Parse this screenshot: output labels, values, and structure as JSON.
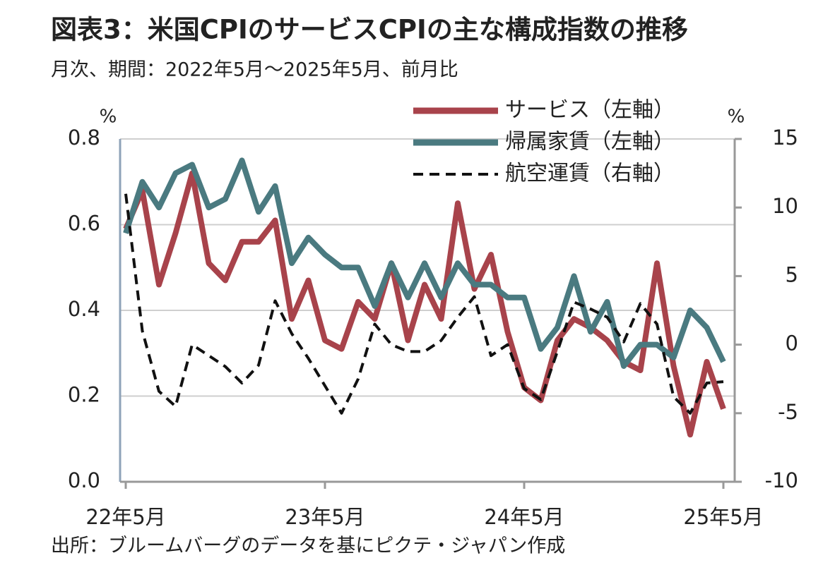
{
  "chart_data": {
    "type": "line",
    "title": "図表3：米国CPIのサービスCPIの主な構成指数の推移",
    "subtitle": "月次、期間：2022年5月～2025年5月、前月比",
    "source": "出所：ブルームバーグのデータを基にピクテ・ジャパン作成",
    "y_unit": "%",
    "y2_unit": "%",
    "categories": [
      "22年5月",
      null,
      null,
      null,
      null,
      null,
      null,
      null,
      null,
      null,
      null,
      null,
      "23年5月",
      null,
      null,
      null,
      null,
      null,
      null,
      null,
      null,
      null,
      null,
      null,
      "24年5月",
      null,
      null,
      null,
      null,
      null,
      null,
      null,
      null,
      null,
      null,
      null,
      "25年5月"
    ],
    "series": [
      {
        "name": "サービス（左軸）",
        "color": "#a8434b",
        "axis": "y",
        "values": [
          0.59,
          0.68,
          0.46,
          0.58,
          0.72,
          0.51,
          0.47,
          0.56,
          0.56,
          0.61,
          0.38,
          0.47,
          0.33,
          0.31,
          0.42,
          0.38,
          0.51,
          0.33,
          0.46,
          0.38,
          0.65,
          0.45,
          0.53,
          0.35,
          0.22,
          0.19,
          0.33,
          0.38,
          0.36,
          0.33,
          0.28,
          0.26,
          0.51,
          0.27,
          0.11,
          0.28,
          0.17
        ]
      },
      {
        "name": "帰属家賃（左軸）",
        "color": "#4a7a80",
        "axis": "y",
        "values": [
          0.58,
          0.7,
          0.64,
          0.72,
          0.74,
          0.64,
          0.66,
          0.75,
          0.63,
          0.69,
          0.51,
          0.57,
          0.53,
          0.5,
          0.5,
          0.41,
          0.51,
          0.43,
          0.51,
          0.43,
          0.51,
          0.46,
          0.46,
          0.43,
          0.43,
          0.31,
          0.36,
          0.48,
          0.35,
          0.42,
          0.27,
          0.32,
          0.32,
          0.29,
          0.4,
          0.36,
          0.28
        ]
      },
      {
        "name": "航空運賃（右軸）",
        "color": "#111111",
        "axis": "y2",
        "dash": true,
        "values": [
          11,
          1,
          -3.4,
          -4.5,
          0,
          -0.8,
          -1.6,
          -2.8,
          -1.5,
          3.2,
          0.8,
          -1,
          -3,
          -5,
          -2.5,
          1.5,
          0,
          -0.5,
          -0.5,
          0.3,
          2,
          3.5,
          -0.8,
          0,
          -3.2,
          -4,
          -0.5,
          3.1,
          2.6,
          2,
          0.2,
          3,
          1.5,
          -3.8,
          -5,
          -2.8,
          -2.7
        ]
      }
    ],
    "ylim": [
      0,
      0.8
    ],
    "yticks": [
      {
        "value": 0,
        "label": "0.0"
      },
      0.2,
      0.4,
      0.6,
      0.8
    ],
    "y2lim": [
      -10,
      15
    ],
    "y2ticks": [
      -10,
      -5,
      0,
      5,
      10,
      15
    ],
    "grid": true,
    "legend": "top-right"
  }
}
